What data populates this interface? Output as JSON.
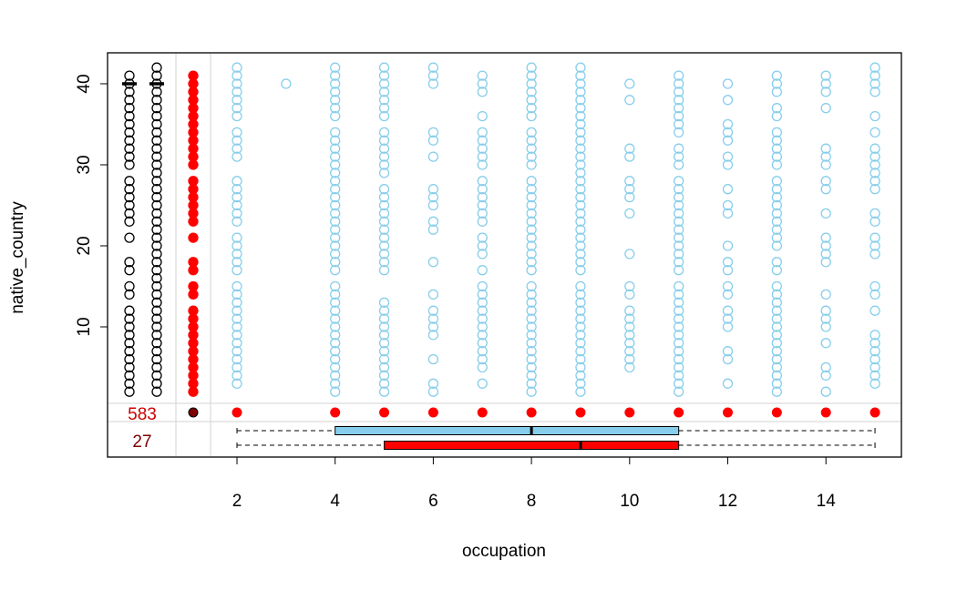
{
  "chart_data": {
    "type": "scatter",
    "title": "",
    "xlabel": "occupation",
    "ylabel": "native_country",
    "xlim": [
      0.53,
      15.45
    ],
    "ylim": [
      0.25,
      43.75
    ],
    "x_ticks": [
      2,
      4,
      6,
      8,
      10,
      12,
      14
    ],
    "y_ticks": [
      10,
      20,
      30,
      40
    ],
    "colors": {
      "both_missing": "#000000",
      "observed": "#87CEEB",
      "missing_x_strip": "#FF0000",
      "missing_strip_dot": "#FF0000",
      "missing_both_dot": "#7F0000",
      "count_missing_y": "#CC0000",
      "count_missing_both": "#7F0000",
      "box_observed": "#87CEEB",
      "box_missing": "#FF0000"
    },
    "series": [
      {
        "role": "black-column-1",
        "points": {
          "2": [
            2,
            3,
            4,
            5,
            6,
            7,
            8,
            9,
            10,
            11,
            12,
            14,
            15,
            17,
            18,
            21,
            23,
            24,
            25,
            26,
            27,
            28,
            30,
            31,
            32,
            33,
            34,
            35,
            36,
            37,
            38,
            39,
            40,
            41
          ],
          "3": []
        }
      },
      {
        "role": "black-column-2",
        "values": [
          2,
          3,
          4,
          5,
          6,
          7,
          8,
          9,
          10,
          11,
          12,
          13,
          14,
          15,
          16,
          17,
          18,
          19,
          20,
          21,
          22,
          23,
          24,
          25,
          26,
          27,
          28,
          29,
          30,
          31,
          32,
          33,
          34,
          35,
          36,
          37,
          38,
          39,
          40,
          41,
          42
        ]
      },
      {
        "role": "red-missing-x",
        "values": [
          2,
          3,
          4,
          5,
          6,
          7,
          8,
          9,
          10,
          11,
          12,
          14,
          15,
          17,
          18,
          21,
          23,
          24,
          25,
          26,
          27,
          28,
          30,
          31,
          32,
          33,
          34,
          35,
          36,
          37,
          38,
          39,
          40,
          41
        ]
      },
      {
        "role": "observed",
        "points": {
          "2": [
            3,
            4,
            5,
            6,
            7,
            8,
            9,
            10,
            11,
            12,
            13,
            14,
            15,
            17,
            18,
            19,
            20,
            21,
            23,
            24,
            25,
            26,
            27,
            28,
            31,
            32,
            33,
            34,
            36,
            37,
            38,
            39,
            40,
            41,
            42
          ],
          "3": [
            40
          ],
          "4": [
            2,
            3,
            4,
            5,
            6,
            7,
            8,
            9,
            10,
            11,
            12,
            13,
            14,
            15,
            17,
            18,
            19,
            20,
            21,
            22,
            23,
            24,
            25,
            26,
            27,
            28,
            29,
            30,
            31,
            32,
            33,
            34,
            36,
            37,
            38,
            39,
            40,
            41,
            42
          ],
          "5": [
            2,
            3,
            4,
            5,
            6,
            7,
            8,
            9,
            10,
            11,
            12,
            13,
            17,
            18,
            19,
            20,
            21,
            22,
            23,
            24,
            25,
            26,
            27,
            29,
            30,
            31,
            32,
            33,
            34,
            36,
            37,
            38,
            39,
            40,
            41,
            42
          ],
          "6": [
            2,
            3,
            6,
            9,
            10,
            11,
            12,
            14,
            18,
            22,
            23,
            25,
            26,
            27,
            31,
            33,
            34,
            40,
            41,
            42
          ],
          "7": [
            3,
            5,
            6,
            7,
            8,
            9,
            10,
            11,
            12,
            13,
            14,
            15,
            17,
            19,
            20,
            21,
            23,
            24,
            25,
            26,
            27,
            28,
            30,
            31,
            32,
            33,
            34,
            36,
            39,
            40,
            41
          ],
          "8": [
            2,
            3,
            4,
            5,
            6,
            7,
            8,
            9,
            10,
            11,
            12,
            13,
            14,
            15,
            17,
            18,
            19,
            20,
            21,
            22,
            23,
            24,
            25,
            26,
            27,
            28,
            30,
            31,
            32,
            33,
            34,
            36,
            37,
            38,
            39,
            40,
            41,
            42
          ],
          "9": [
            2,
            3,
            4,
            5,
            6,
            7,
            8,
            9,
            10,
            11,
            12,
            13,
            14,
            15,
            17,
            18,
            19,
            20,
            21,
            22,
            23,
            24,
            25,
            26,
            27,
            28,
            29,
            30,
            31,
            32,
            33,
            34,
            35,
            36,
            37,
            38,
            39,
            40,
            41,
            42
          ],
          "10": [
            5,
            6,
            7,
            8,
            9,
            10,
            11,
            12,
            14,
            15,
            19,
            24,
            26,
            27,
            28,
            31,
            32,
            38,
            40
          ],
          "11": [
            2,
            3,
            4,
            5,
            6,
            7,
            8,
            9,
            10,
            11,
            12,
            13,
            14,
            15,
            17,
            18,
            19,
            20,
            21,
            22,
            23,
            24,
            25,
            26,
            27,
            28,
            30,
            31,
            32,
            34,
            35,
            36,
            37,
            38,
            39,
            40,
            41
          ],
          "12": [
            3,
            6,
            7,
            10,
            11,
            12,
            14,
            15,
            17,
            18,
            20,
            24,
            25,
            27,
            30,
            31,
            33,
            34,
            35,
            38,
            40
          ],
          "13": [
            2,
            3,
            4,
            5,
            6,
            7,
            8,
            9,
            10,
            11,
            12,
            13,
            14,
            15,
            17,
            18,
            20,
            21,
            22,
            23,
            24,
            25,
            26,
            27,
            28,
            30,
            31,
            32,
            33,
            34,
            36,
            37,
            39,
            40,
            41
          ],
          "14": [
            2,
            4,
            5,
            8,
            10,
            11,
            12,
            14,
            18,
            19,
            20,
            21,
            24,
            27,
            28,
            30,
            31,
            32,
            37,
            39,
            40,
            41
          ],
          "15": [
            3,
            4,
            5,
            6,
            7,
            8,
            9,
            12,
            14,
            15,
            19,
            20,
            21,
            23,
            24,
            27,
            28,
            29,
            30,
            31,
            32,
            34,
            36,
            39,
            40,
            41,
            42
          ]
        }
      }
    ],
    "missing_strip": {
      "x_values": [
        2,
        4,
        5,
        6,
        7,
        8,
        9,
        10,
        11,
        12,
        13,
        14,
        15
      ],
      "count_missing_y": "583",
      "count_missing_both": "27"
    },
    "boxplots": [
      {
        "name": "observed",
        "min": 2,
        "q1": 4,
        "median": 8,
        "q3": 11,
        "max": 15
      },
      {
        "name": "missing",
        "min": 2,
        "q1": 5,
        "median": 9,
        "q3": 11,
        "max": 15
      }
    ]
  }
}
